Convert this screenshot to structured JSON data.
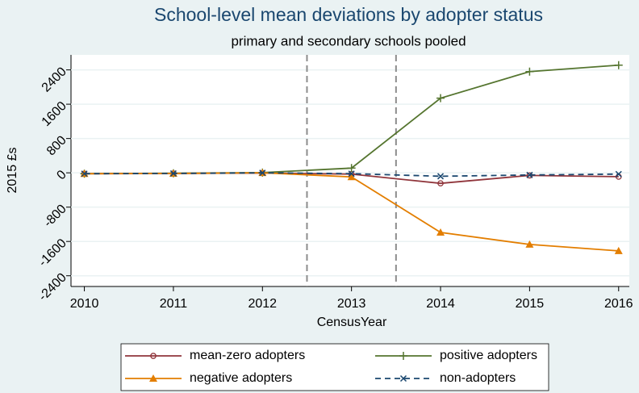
{
  "chart_data": {
    "type": "line",
    "title": "School-level mean deviations by adopter status",
    "subtitle": "primary and secondary schools pooled",
    "x_label": "CensusYear",
    "y_label": "2015 £s",
    "x": [
      2010,
      2011,
      2012,
      2013,
      2014,
      2015,
      2016
    ],
    "xlim": [
      2009.85,
      2016.12
    ],
    "xticks": [
      2010,
      2011,
      2012,
      2013,
      2014,
      2015,
      2016
    ],
    "ylim": [
      -2650,
      2750
    ],
    "yticks": [
      -2400,
      -1600,
      -800,
      0,
      800,
      1600,
      2400
    ],
    "grid": true,
    "reference_lines": [
      2012.5,
      2013.5
    ],
    "legend_position": "bottom",
    "series": [
      {
        "name": "mean-zero adopters",
        "color": "#90353b",
        "marker": "circle",
        "dashed": false,
        "values": [
          -20,
          -15,
          -5,
          -30,
          -245,
          -60,
          -90
        ]
      },
      {
        "name": "positive adopters",
        "color": "#55752f",
        "marker": "plus",
        "dashed": false,
        "values": [
          -20,
          -10,
          5,
          110,
          1740,
          2360,
          2510
        ]
      },
      {
        "name": "negative adopters",
        "color": "#e37e00",
        "marker": "triangle",
        "dashed": false,
        "values": [
          -20,
          -15,
          0,
          -95,
          -1390,
          -1670,
          -1820
        ]
      },
      {
        "name": "non-adopters",
        "color": "#1a476f",
        "marker": "x",
        "dashed": true,
        "values": [
          -20,
          -15,
          0,
          -20,
          -80,
          -50,
          -30
        ]
      }
    ]
  }
}
